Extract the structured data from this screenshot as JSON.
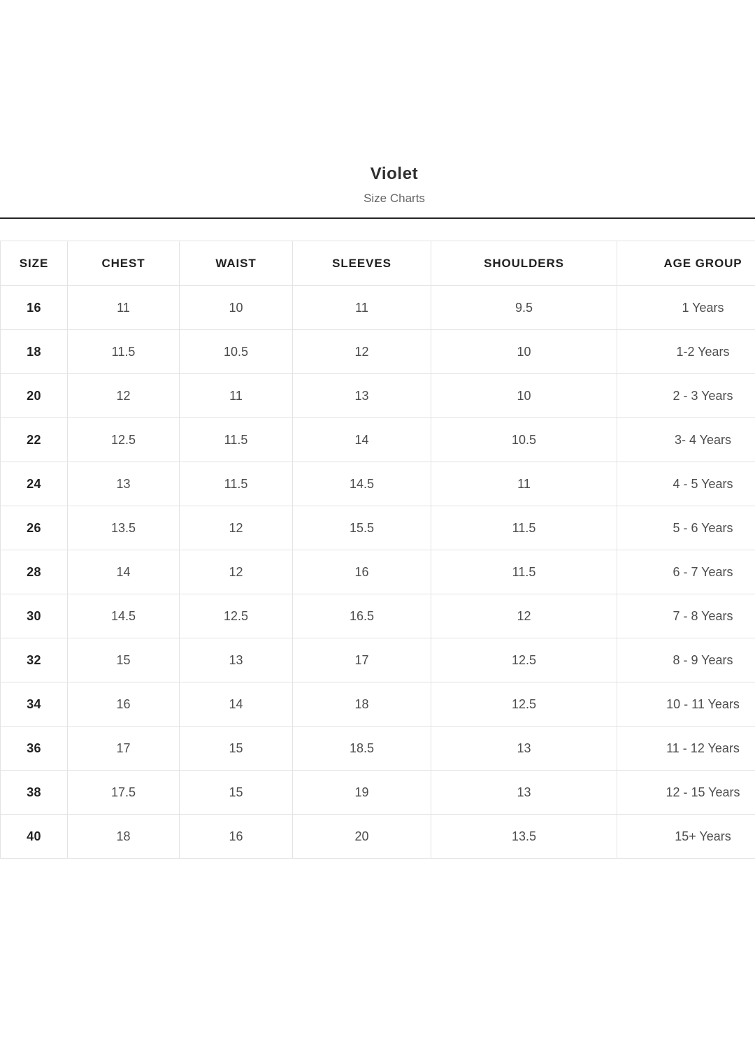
{
  "header": {
    "title": "Violet",
    "subtitle": "Size Charts"
  },
  "table": {
    "columns": [
      "SIZE",
      "CHEST",
      "WAIST",
      "SLEEVES",
      "SHOULDERS",
      "AGE GROUP"
    ],
    "rows": [
      [
        "16",
        "11",
        "10",
        "11",
        "9.5",
        "1 Years"
      ],
      [
        "18",
        "11.5",
        "10.5",
        "12",
        "10",
        "1-2 Years"
      ],
      [
        "20",
        "12",
        "11",
        "13",
        "10",
        "2 - 3 Years"
      ],
      [
        "22",
        "12.5",
        "11.5",
        "14",
        "10.5",
        "3- 4 Years"
      ],
      [
        "24",
        "13",
        "11.5",
        "14.5",
        "11",
        "4 - 5 Years"
      ],
      [
        "26",
        "13.5",
        "12",
        "15.5",
        "11.5",
        "5 - 6 Years"
      ],
      [
        "28",
        "14",
        "12",
        "16",
        "11.5",
        "6 - 7 Years"
      ],
      [
        "30",
        "14.5",
        "12.5",
        "16.5",
        "12",
        "7 - 8 Years"
      ],
      [
        "32",
        "15",
        "13",
        "17",
        "12.5",
        "8 - 9 Years"
      ],
      [
        "34",
        "16",
        "14",
        "18",
        "12.5",
        "10 - 11 Years"
      ],
      [
        "36",
        "17",
        "15",
        "18.5",
        "13",
        "11 - 12 Years"
      ],
      [
        "38",
        "17.5",
        "15",
        "19",
        "13",
        "12 - 15 Years"
      ],
      [
        "40",
        "18",
        "16",
        "20",
        "13.5",
        "15+ Years"
      ]
    ]
  },
  "colors": {
    "background": "#ffffff",
    "divider": "#252525",
    "table_border": "#e3e3e3",
    "heading_text": "#212121",
    "cell_text": "#4d4d4d",
    "subtitle_text": "#666666"
  }
}
